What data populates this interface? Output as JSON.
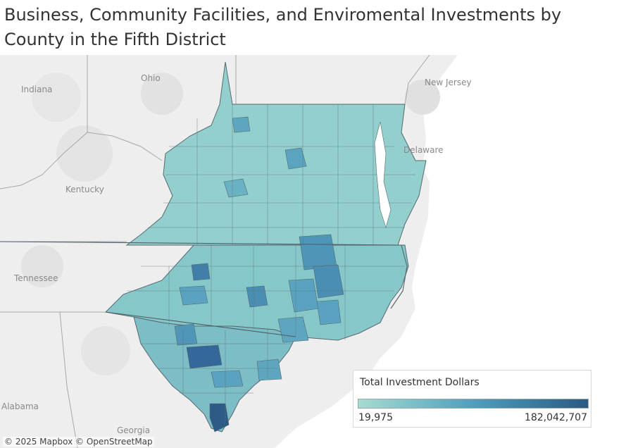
{
  "title": "Business, Community Facilities, and Enviromental Investments by County in the Fifth District",
  "map": {
    "place_labels": [
      "Ohio",
      "Indiana",
      "New Jersey",
      "Delaware",
      "Kentucky",
      "Tennessee",
      "Alabama",
      "Georgia"
    ],
    "attribution": "© 2025 Mapbox © OpenStreetMap",
    "region_fill_color": "#8ecbcb",
    "outline_color": "#5a6a70"
  },
  "legend": {
    "title": "Total Investment Dollars",
    "min_label": "19,975",
    "max_label": "182,042,707",
    "color_low": "#a6dcd0",
    "color_mid": "#4f9fbc",
    "color_high": "#2b5a82"
  }
}
